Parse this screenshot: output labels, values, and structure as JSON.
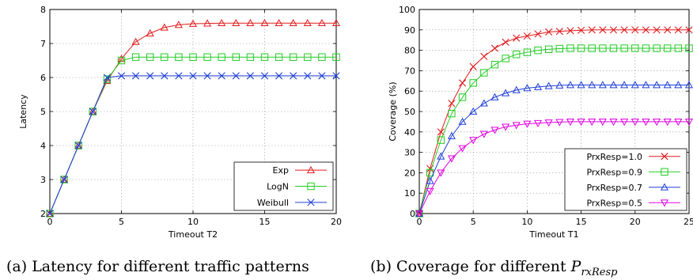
{
  "captions": {
    "a": "(a) Latency for different traffic patterns",
    "b_prefix": "(b) Coverage for different ",
    "b_math": "P",
    "b_sub": "rxResp"
  },
  "chart_data": [
    {
      "type": "line",
      "title": "",
      "xlabel": "Timeout T2",
      "ylabel": "Latency",
      "xlim": [
        0,
        20
      ],
      "ylim": [
        2,
        8
      ],
      "xticks": [
        0,
        5,
        10,
        15,
        20
      ],
      "yticks": [
        2,
        3,
        4,
        5,
        6,
        7,
        8
      ],
      "grid": true,
      "legend": "bottom-right",
      "x": [
        0,
        1,
        2,
        3,
        4,
        5,
        6,
        7,
        8,
        9,
        10,
        11,
        12,
        13,
        14,
        15,
        16,
        17,
        18,
        19,
        20
      ],
      "series": [
        {
          "name": "Exp",
          "color": "#e41a1c",
          "marker": "triangle-up",
          "values": [
            2,
            3,
            4,
            5,
            5.9,
            6.55,
            7.05,
            7.3,
            7.47,
            7.55,
            7.58,
            7.59,
            7.6,
            7.6,
            7.6,
            7.6,
            7.6,
            7.6,
            7.6,
            7.6,
            7.6
          ]
        },
        {
          "name": "LogN",
          "color": "#22cc22",
          "marker": "square",
          "values": [
            2,
            3,
            4,
            5,
            5.95,
            6.5,
            6.6,
            6.6,
            6.6,
            6.6,
            6.6,
            6.6,
            6.6,
            6.6,
            6.6,
            6.6,
            6.6,
            6.6,
            6.6,
            6.6,
            6.6
          ]
        },
        {
          "name": "Weibull",
          "color": "#1f3fd6",
          "marker": "x",
          "values": [
            2,
            3,
            4,
            5,
            6,
            6.05,
            6.05,
            6.05,
            6.05,
            6.05,
            6.05,
            6.05,
            6.05,
            6.05,
            6.05,
            6.05,
            6.05,
            6.05,
            6.05,
            6.05,
            6.05
          ]
        }
      ]
    },
    {
      "type": "line",
      "title": "",
      "xlabel": "Timeout T1",
      "ylabel": "Coverage (%)",
      "xlim": [
        0,
        25
      ],
      "ylim": [
        0,
        100
      ],
      "xticks": [
        0,
        5,
        10,
        15,
        20,
        25
      ],
      "yticks": [
        0,
        10,
        20,
        30,
        40,
        50,
        60,
        70,
        80,
        90,
        100
      ],
      "grid": true,
      "legend": "bottom-right",
      "x": [
        0,
        1,
        2,
        3,
        4,
        5,
        6,
        7,
        8,
        9,
        10,
        11,
        12,
        13,
        14,
        15,
        16,
        17,
        18,
        19,
        20,
        21,
        22,
        23,
        24,
        25
      ],
      "series": [
        {
          "name": "PrxResp=1.0",
          "color": "#e41a1c",
          "marker": "x",
          "values": [
            0,
            22,
            40,
            54,
            64,
            72,
            77,
            81,
            84,
            86,
            87,
            88,
            89,
            89.3,
            89.6,
            89.8,
            90,
            90,
            90,
            90,
            90,
            90,
            90,
            90,
            90,
            90
          ]
        },
        {
          "name": "PrxResp=0.9",
          "color": "#22cc22",
          "marker": "square",
          "values": [
            0,
            20,
            36,
            49,
            57,
            64,
            69,
            73,
            76,
            78,
            79,
            80,
            80.5,
            80.8,
            81,
            81,
            81,
            81,
            81,
            81,
            81,
            81,
            81,
            81,
            81,
            81
          ]
        },
        {
          "name": "PrxResp=0.7",
          "color": "#1f3fd6",
          "marker": "triangle-up",
          "values": [
            0,
            16,
            28,
            38,
            45,
            50,
            54,
            57,
            59,
            60.5,
            61.5,
            62,
            62.5,
            62.8,
            63,
            63,
            63,
            63,
            63,
            63,
            63,
            63,
            63,
            63,
            63,
            63
          ]
        },
        {
          "name": "PrxResp=0.5",
          "color": "#e000e0",
          "marker": "triangle-down",
          "values": [
            0,
            11,
            20,
            27,
            32,
            36,
            39,
            41,
            42.5,
            43.3,
            44,
            44.3,
            44.6,
            44.8,
            45,
            45,
            45,
            45,
            45,
            45,
            45,
            45,
            45,
            45,
            45,
            45
          ]
        }
      ]
    }
  ]
}
